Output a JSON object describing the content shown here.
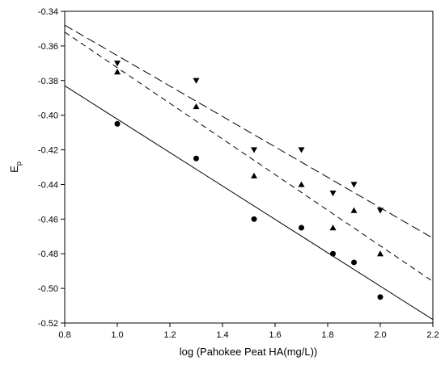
{
  "chart_data": {
    "type": "scatter",
    "xlabel": "log (Pahokee Peat HA(mg/L))",
    "ylabel": "E",
    "ylabel_subscript": "p",
    "xlim": [
      0.8,
      2.2
    ],
    "ylim": [
      -0.52,
      -0.34
    ],
    "x_ticks": [
      "0.8",
      "1.0",
      "1.2",
      "1.4",
      "1.6",
      "1.8",
      "2.0",
      "2.2"
    ],
    "y_ticks": [
      "-0.34",
      "-0.36",
      "-0.38",
      "-0.40",
      "-0.42",
      "-0.44",
      "-0.46",
      "-0.48",
      "-0.50",
      "-0.52"
    ],
    "grid": false,
    "series": [
      {
        "marker": "circle",
        "color": "#000000",
        "points": [
          {
            "x": 1.0,
            "y": -0.405
          },
          {
            "x": 1.3,
            "y": -0.425
          },
          {
            "x": 1.52,
            "y": -0.46
          },
          {
            "x": 1.7,
            "y": -0.465
          },
          {
            "x": 1.82,
            "y": -0.48
          },
          {
            "x": 1.9,
            "y": -0.485
          },
          {
            "x": 2.0,
            "y": -0.505
          }
        ],
        "fit": {
          "style": "solid",
          "x": [
            0.8,
            2.2
          ],
          "y": [
            -0.383,
            -0.518
          ]
        }
      },
      {
        "marker": "triangle-up",
        "color": "#000000",
        "points": [
          {
            "x": 1.0,
            "y": -0.375
          },
          {
            "x": 1.3,
            "y": -0.395
          },
          {
            "x": 1.52,
            "y": -0.435
          },
          {
            "x": 1.7,
            "y": -0.44
          },
          {
            "x": 1.82,
            "y": -0.465
          },
          {
            "x": 1.9,
            "y": -0.455
          },
          {
            "x": 2.0,
            "y": -0.48
          }
        ],
        "fit": {
          "style": "dashed",
          "x": [
            0.8,
            2.2
          ],
          "y": [
            -0.352,
            -0.496
          ]
        }
      },
      {
        "marker": "triangle-down",
        "color": "#000000",
        "points": [
          {
            "x": 1.0,
            "y": -0.37
          },
          {
            "x": 1.3,
            "y": -0.38
          },
          {
            "x": 1.52,
            "y": -0.42
          },
          {
            "x": 1.7,
            "y": -0.42
          },
          {
            "x": 1.82,
            "y": -0.445
          },
          {
            "x": 1.9,
            "y": -0.44
          },
          {
            "x": 2.0,
            "y": -0.455
          }
        ],
        "fit": {
          "style": "longdash",
          "x": [
            0.8,
            2.2
          ],
          "y": [
            -0.348,
            -0.471
          ]
        }
      }
    ]
  }
}
